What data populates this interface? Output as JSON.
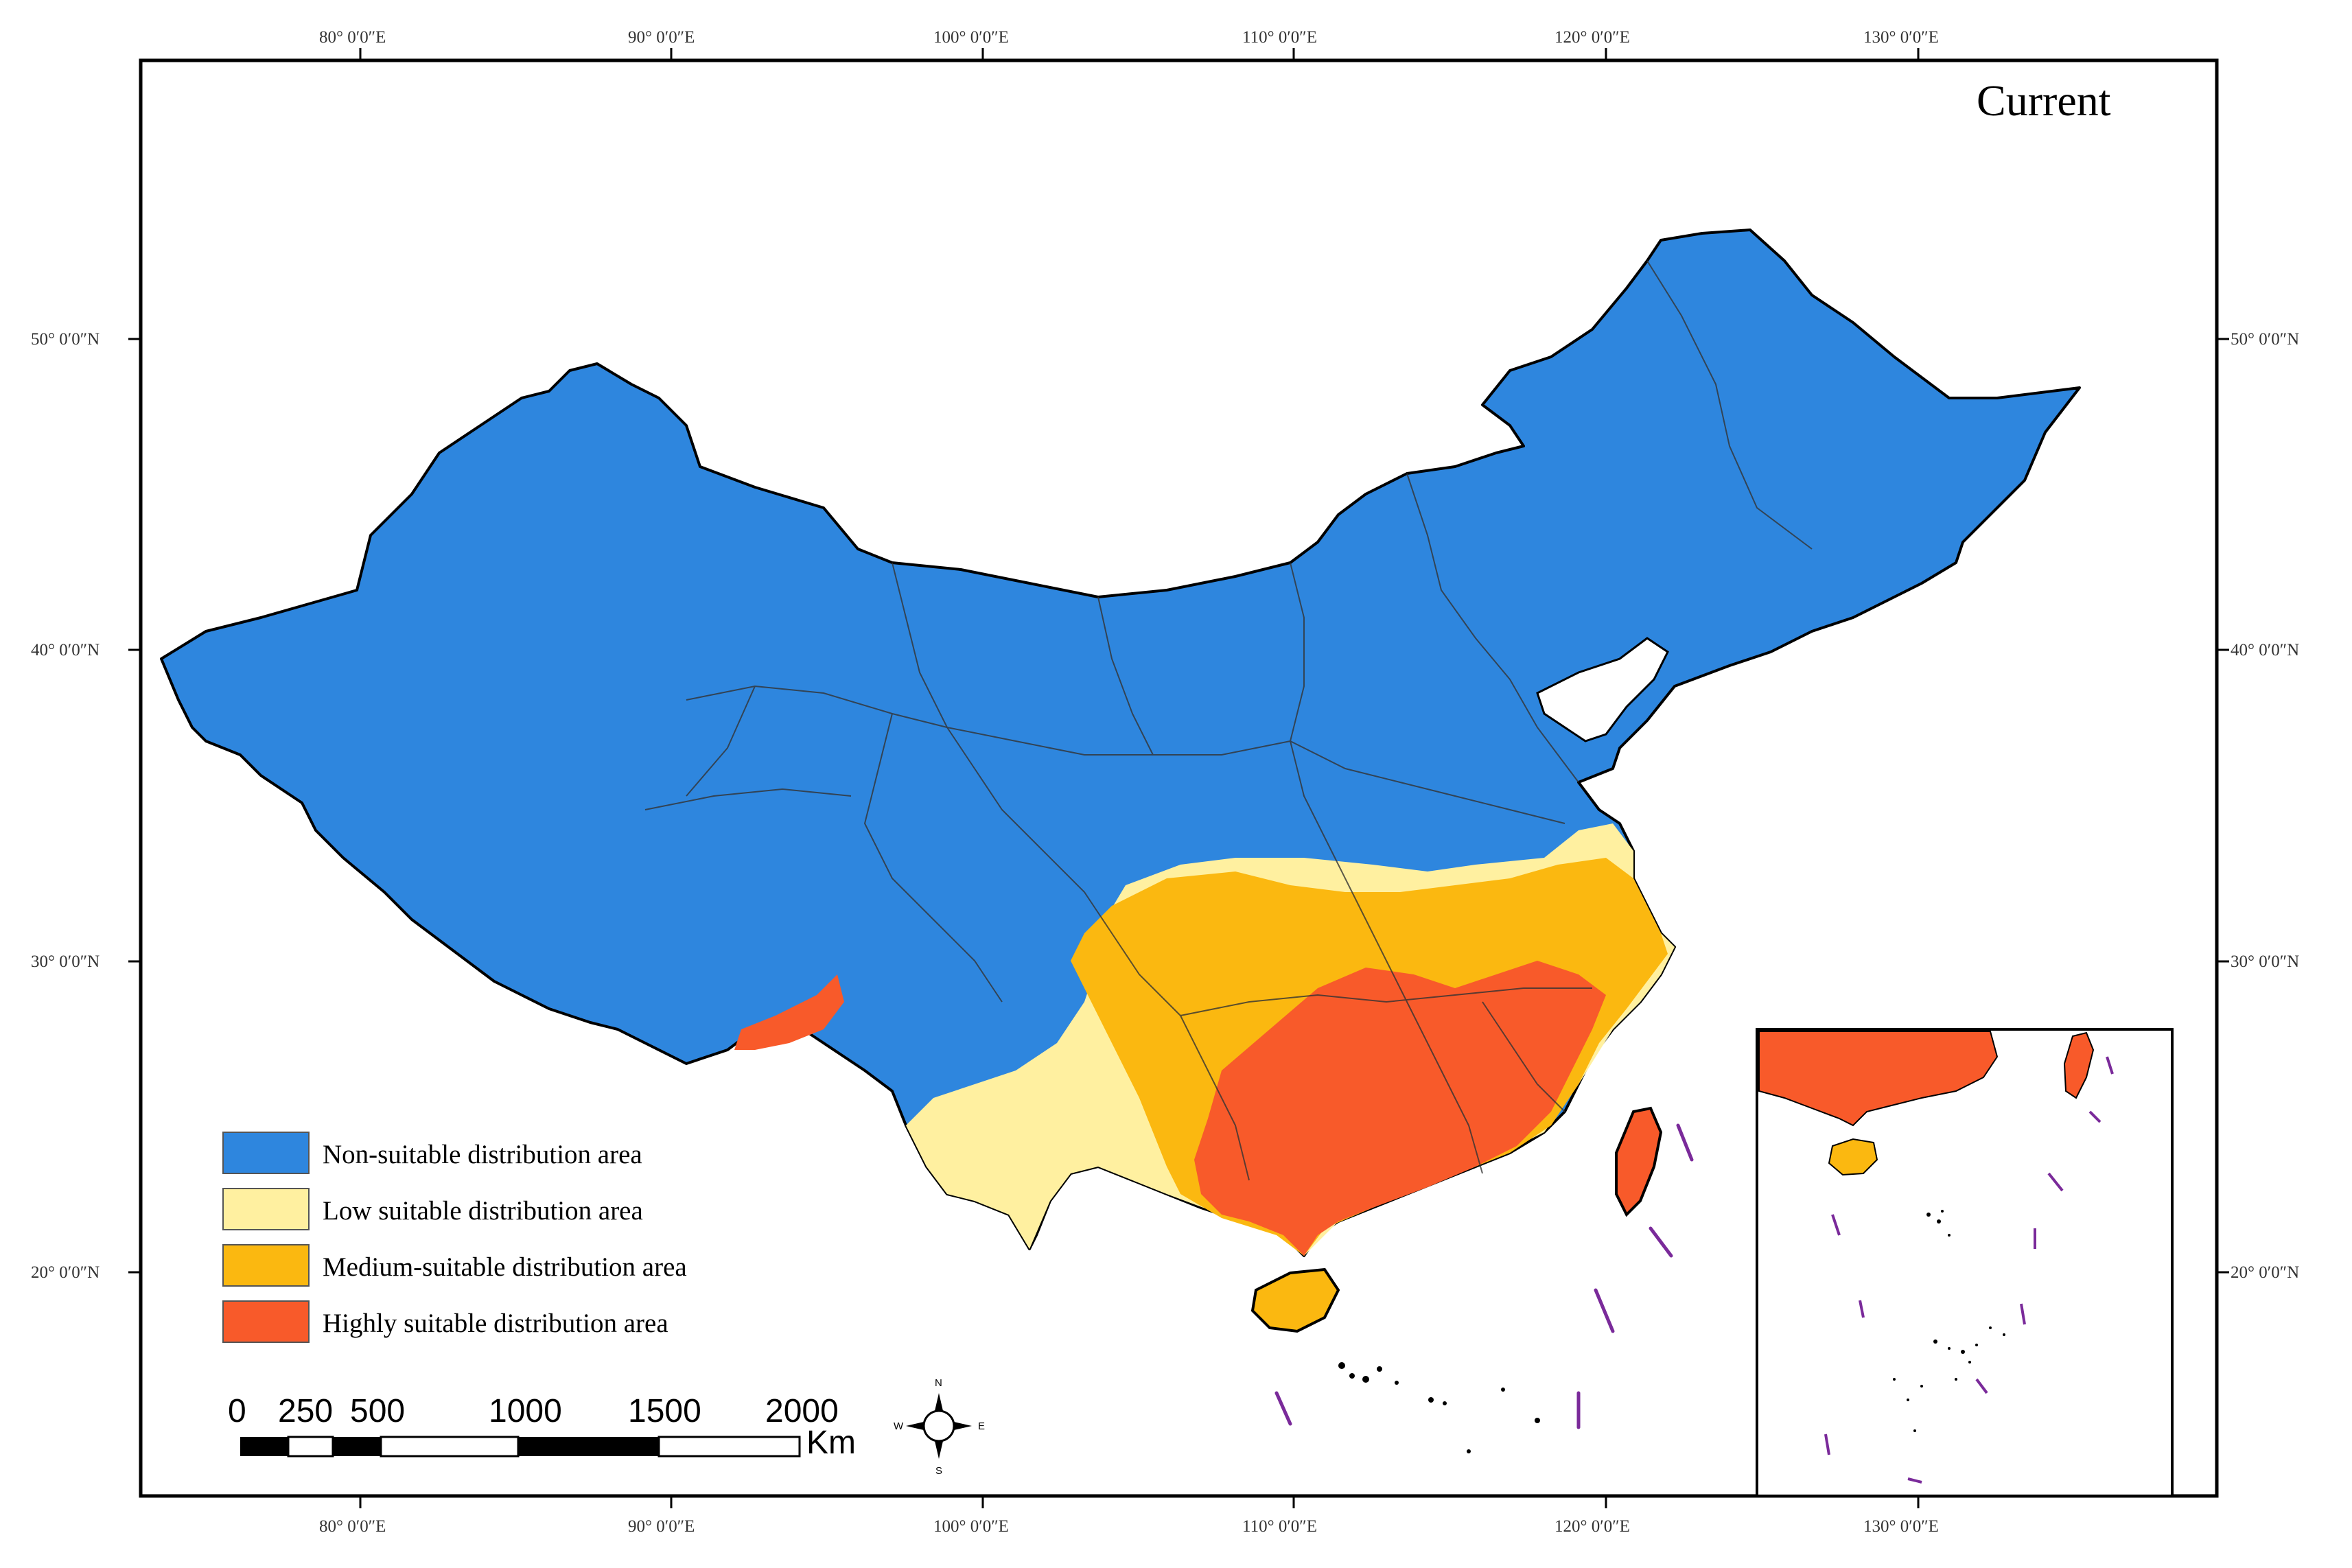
{
  "map": {
    "title": "Current",
    "longitude_labels": [
      "80° 0′0″E",
      "90° 0′0″E",
      "100° 0′0″E",
      "110° 0′0″E",
      "120° 0′0″E",
      "130° 0′0″E"
    ],
    "latitude_labels": [
      "50° 0′0″N",
      "40° 0′0″N",
      "30° 0′0″N",
      "20° 0′0″N"
    ],
    "legend": [
      {
        "label": "Non-suitable distribution area",
        "color": "#2e86de"
      },
      {
        "label": "Low suitable distribution area",
        "color": "#fff0a0"
      },
      {
        "label": "Medium-suitable distribution area",
        "color": "#fbb810"
      },
      {
        "label": "Highly suitable distribution area",
        "color": "#f85a2a"
      }
    ],
    "scale_bar": {
      "ticks": [
        "0",
        "250",
        "500",
        "1000",
        "1500",
        "2000"
      ],
      "unit": "Km"
    },
    "compass": {
      "n": "N",
      "s": "S",
      "e": "E",
      "w": "W"
    },
    "colors": {
      "non_suitable": "#2e86de",
      "low": "#fff0a0",
      "medium": "#fbb810",
      "high": "#f85a2a",
      "boundary": "#333333",
      "dash_line": "#7a2a9a"
    }
  }
}
